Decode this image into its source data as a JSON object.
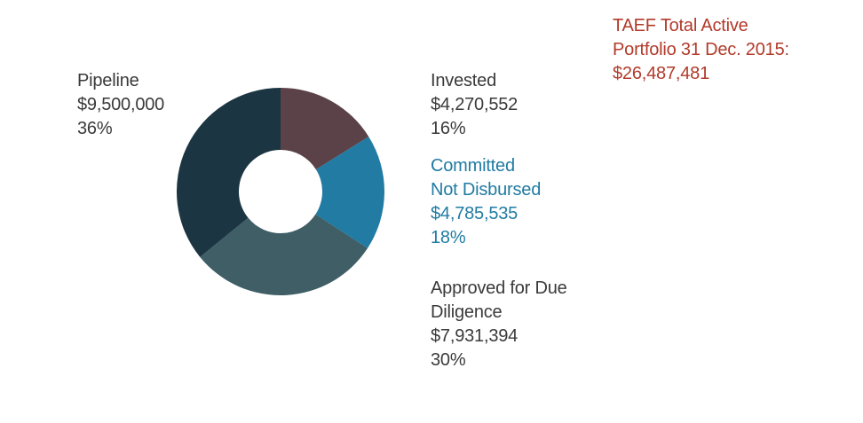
{
  "colors": {
    "invested": "#5b4249",
    "committed": "#217ba3",
    "approved": "#3f5e66",
    "pipeline": "#1c3542",
    "total": "#b23a2a",
    "label_dark": "#3a3a3a"
  },
  "total": {
    "line1": "TAEF Total Active",
    "line2": "Portfolio 31 Dec. 2015:",
    "amount": "$26,487,481"
  },
  "chart_data": {
    "type": "pie",
    "donut": true,
    "title": "TAEF Total Active Portfolio 31 Dec. 2015: $26,487,481",
    "slices": [
      {
        "key": "invested",
        "label_lines": [
          "Invested"
        ],
        "value": 4270552,
        "amount_text": "$4,270,552",
        "percent_text": "16%",
        "color": "#5b4249"
      },
      {
        "key": "committed",
        "label_lines": [
          "Committed",
          "Not Disbursed"
        ],
        "value": 4785535,
        "amount_text": "$4,785,535",
        "percent_text": "18%",
        "color": "#217ba3"
      },
      {
        "key": "approved",
        "label_lines": [
          "Approved for Due",
          "Diligence"
        ],
        "value": 7931394,
        "amount_text": "$7,931,394",
        "percent_text": "30%",
        "color": "#3f5e66"
      },
      {
        "key": "pipeline",
        "label_lines": [
          "Pipeline"
        ],
        "value": 9500000,
        "amount_text": "$9,500,000",
        "percent_text": "36%",
        "color": "#1c3542"
      }
    ]
  }
}
